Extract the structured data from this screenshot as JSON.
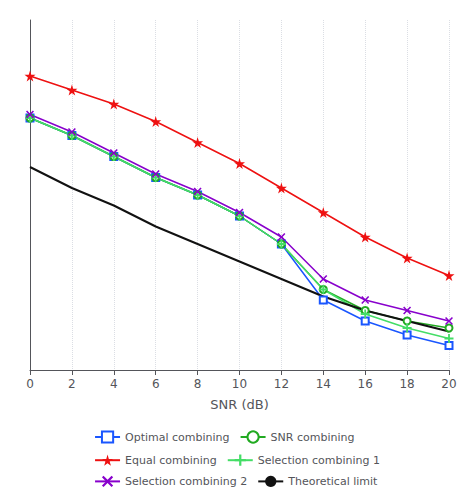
{
  "chart_data": {
    "type": "line",
    "xlabel": "SNR (dB)",
    "x": [
      0,
      2,
      4,
      6,
      8,
      10,
      12,
      14,
      16,
      18,
      20
    ],
    "series": [
      {
        "name": "Optimal combining",
        "color": "#1a56ff",
        "marker": "square",
        "values": [
          0.72,
          0.67,
          0.61,
          0.55,
          0.5,
          0.44,
          0.36,
          0.2,
          0.14,
          0.1,
          0.07
        ]
      },
      {
        "name": "SNR combining",
        "color": "#22aa22",
        "marker": "circle",
        "values": [
          0.72,
          0.67,
          0.61,
          0.55,
          0.5,
          0.44,
          0.36,
          0.23,
          0.17,
          0.14,
          0.12
        ]
      },
      {
        "name": "Equal combining",
        "color": "#ee1111",
        "marker": "star",
        "values": [
          0.84,
          0.8,
          0.76,
          0.71,
          0.65,
          0.59,
          0.52,
          0.45,
          0.38,
          0.32,
          0.27
        ]
      },
      {
        "name": "Selection combining 1",
        "color": "#44dd66",
        "marker": "plus",
        "values": [
          0.72,
          0.67,
          0.61,
          0.55,
          0.5,
          0.44,
          0.36,
          0.23,
          0.16,
          0.12,
          0.09
        ]
      },
      {
        "name": "Selection combining 2",
        "color": "#8800cc",
        "marker": "x",
        "values": [
          0.73,
          0.68,
          0.62,
          0.56,
          0.51,
          0.45,
          0.38,
          0.26,
          0.2,
          0.17,
          0.14
        ]
      },
      {
        "name": "Theoretical limit",
        "color": "#111111",
        "marker": "none",
        "values": [
          0.58,
          0.52,
          0.47,
          0.41,
          0.36,
          0.31,
          0.26,
          0.21,
          0.17,
          0.14,
          0.11
        ]
      }
    ],
    "xlim": [
      0,
      20
    ],
    "xticks": [
      0,
      2,
      4,
      6,
      8,
      10,
      12,
      14,
      16,
      18,
      20
    ],
    "ylim": [
      0,
      1
    ],
    "yticks": [],
    "tick_labels": "x",
    "grid": true,
    "legend": "bottom"
  }
}
